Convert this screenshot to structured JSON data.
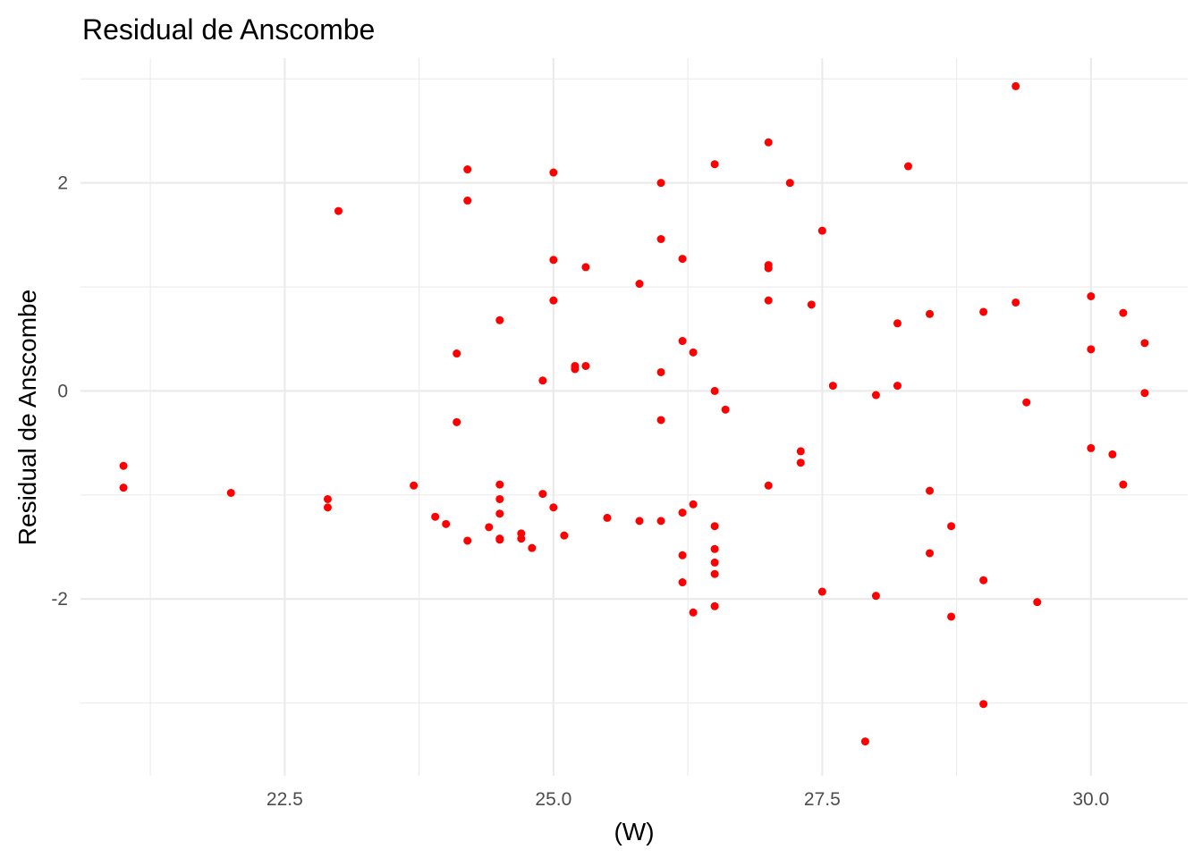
{
  "chart_data": {
    "type": "scatter",
    "title": "Residual de Anscombe",
    "xlabel": "(W)",
    "ylabel": "Residual de Anscombe",
    "xlim": [
      20.6,
      30.9
    ],
    "ylim": [
      -3.7,
      3.2
    ],
    "x_ticks": [
      22.5,
      25.0,
      27.5,
      30.0
    ],
    "x_tick_labels": [
      "22.5",
      "25.0",
      "27.5",
      "30.0"
    ],
    "x_minor": [
      21.25,
      23.75,
      26.25,
      28.75
    ],
    "y_ticks": [
      -2,
      0,
      2
    ],
    "y_tick_labels": [
      "-2",
      "0",
      "2"
    ],
    "y_minor": [
      -3,
      -1,
      1,
      3
    ],
    "grid": true,
    "legend": "none",
    "point_color": "#ff0000",
    "x": [
      21.0,
      21.0,
      22.0,
      22.9,
      22.9,
      23.0,
      23.7,
      23.9,
      24.0,
      24.1,
      24.1,
      24.2,
      24.2,
      24.2,
      24.4,
      24.5,
      24.5,
      24.5,
      24.5,
      24.5,
      24.5,
      24.7,
      24.7,
      24.8,
      24.9,
      24.9,
      25.0,
      25.0,
      25.0,
      25.0,
      25.1,
      25.2,
      25.2,
      25.3,
      25.3,
      25.5,
      25.8,
      25.8,
      26.0,
      26.0,
      26.0,
      26.0,
      26.0,
      26.2,
      26.2,
      26.2,
      26.2,
      26.2,
      26.3,
      26.3,
      26.3,
      26.5,
      26.5,
      26.5,
      26.5,
      26.5,
      26.5,
      26.5,
      26.6,
      27.0,
      27.0,
      27.0,
      27.0,
      27.0,
      27.2,
      27.3,
      27.3,
      27.4,
      27.5,
      27.5,
      27.6,
      27.9,
      28.0,
      28.0,
      28.2,
      28.2,
      28.3,
      28.5,
      28.5,
      28.5,
      28.7,
      28.7,
      29.0,
      29.0,
      29.0,
      29.3,
      29.3,
      29.4,
      29.5,
      30.0,
      30.0,
      30.0,
      30.2,
      30.3,
      30.3,
      30.5,
      30.5
    ],
    "y": [
      -0.72,
      -0.93,
      -0.98,
      -1.04,
      -1.12,
      1.73,
      -0.91,
      -1.21,
      -1.28,
      0.36,
      -0.3,
      2.13,
      1.83,
      -1.44,
      -1.31,
      0.68,
      -0.9,
      -1.04,
      -1.18,
      -1.42,
      -1.43,
      -1.37,
      -1.42,
      -1.51,
      0.1,
      -0.99,
      2.1,
      1.26,
      0.87,
      -1.12,
      -1.39,
      0.24,
      0.21,
      1.19,
      0.24,
      -1.22,
      1.03,
      -1.25,
      2.0,
      1.46,
      0.18,
      -0.28,
      -1.25,
      0.48,
      1.27,
      -1.17,
      -1.58,
      -1.84,
      0.37,
      -1.09,
      -2.13,
      2.18,
      0.0,
      -1.3,
      -1.52,
      -1.65,
      -1.76,
      -2.07,
      -0.18,
      2.39,
      1.21,
      1.18,
      0.87,
      -0.91,
      2.0,
      -0.58,
      -0.69,
      0.83,
      1.54,
      -1.93,
      0.05,
      -3.37,
      -0.04,
      -1.97,
      0.05,
      0.65,
      2.16,
      0.74,
      -0.96,
      -1.56,
      -1.3,
      -2.17,
      0.76,
      -1.82,
      -3.01,
      0.85,
      2.93,
      -0.11,
      -2.03,
      0.91,
      0.4,
      -0.55,
      -0.61,
      0.75,
      -0.9,
      0.46,
      -0.02
    ]
  }
}
